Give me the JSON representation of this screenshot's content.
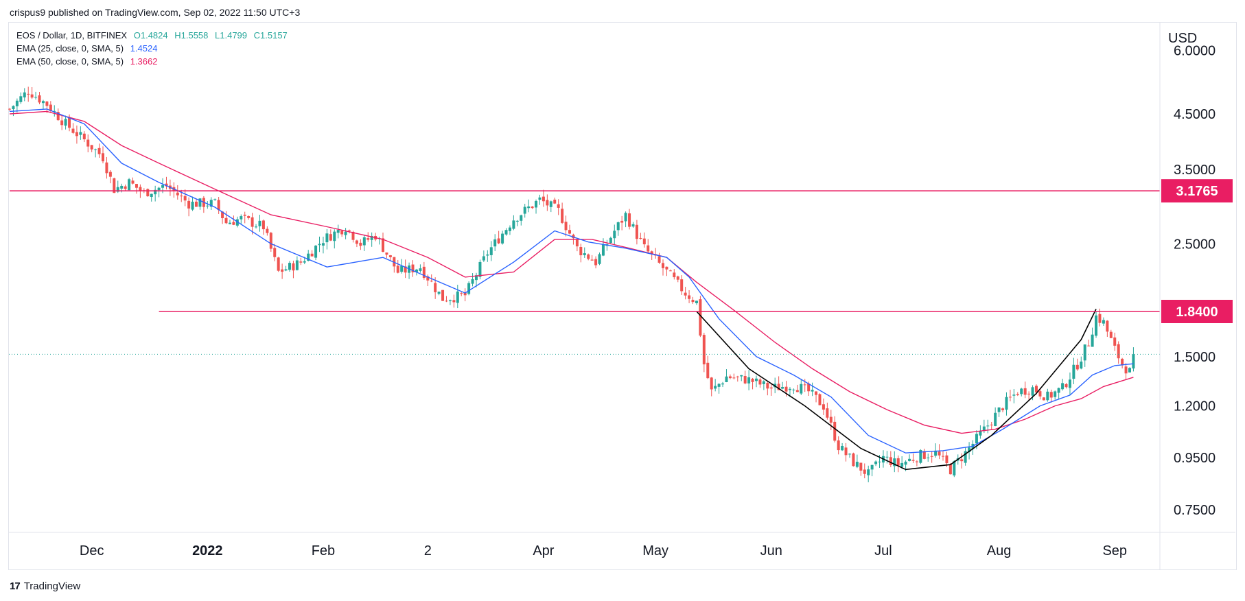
{
  "header": {
    "published": "crispus9 published on TradingView.com, Sep 02, 2022 11:50 UTC+3"
  },
  "legend": {
    "symbol": "EOS / Dollar, 1D, BITFINEX",
    "ohlc": {
      "open": "O1.4824",
      "high": "H1.5558",
      "low": "L1.4799",
      "close": "C1.5157"
    },
    "ema25": {
      "label": "EMA (25, close, 0, SMA, 5)",
      "value": "1.4524",
      "color": "#2962ff"
    },
    "ema50": {
      "label": "EMA (50, close, 0, SMA, 5)",
      "value": "1.3662",
      "color": "#e91e63"
    }
  },
  "footer": {
    "brand": "TradingView",
    "logo": "17"
  },
  "colors": {
    "up": "#26a69a",
    "down": "#ef5350",
    "level": "#e91e63",
    "ema25": "#2962ff",
    "ema50": "#e91e63",
    "pattern": "#000000",
    "lastPrice": "#26a69a"
  },
  "chart_data": {
    "type": "candlestick",
    "title": "EOS / Dollar, 1D, BITFINEX",
    "currency": "USD",
    "scale": "log",
    "ylim": [
      0.6,
      6.0
    ],
    "y_ticks": [
      "6.0000",
      "4.5000",
      "3.5000",
      "2.5000",
      "1.5000",
      "1.2000",
      "0.9500",
      "0.7500"
    ],
    "x_ticks": [
      "Dec",
      "2022",
      "Feb",
      "2",
      "Apr",
      "May",
      "Jun",
      "Jul",
      "Aug",
      "Sep"
    ],
    "x_tick_days": [
      22,
      53,
      84,
      112,
      143,
      173,
      204,
      234,
      265,
      296
    ],
    "date_start": "2021-11-10",
    "horizontal_levels": [
      {
        "value": 3.1765,
        "label": "3.1765",
        "start_day": 0
      },
      {
        "value": 1.84,
        "label": "1.8400",
        "start_day": 40
      }
    ],
    "last_price": 1.5157,
    "cup_pattern": [
      [
        184,
        1.84
      ],
      [
        198,
        1.42
      ],
      [
        213,
        1.2
      ],
      [
        228,
        0.99
      ],
      [
        240,
        0.9
      ],
      [
        252,
        0.92
      ],
      [
        263,
        1.05
      ],
      [
        275,
        1.27
      ],
      [
        287,
        1.62
      ],
      [
        291,
        1.86
      ]
    ],
    "ohlc_anchors": [
      [
        0,
        4.6
      ],
      [
        5,
        5.0
      ],
      [
        10,
        4.7
      ],
      [
        15,
        4.3
      ],
      [
        20,
        4.0
      ],
      [
        25,
        3.7
      ],
      [
        28,
        3.2
      ],
      [
        32,
        3.3
      ],
      [
        36,
        3.15
      ],
      [
        42,
        3.25
      ],
      [
        48,
        3.0
      ],
      [
        55,
        3.0
      ],
      [
        58,
        2.75
      ],
      [
        62,
        2.8
      ],
      [
        68,
        2.7
      ],
      [
        72,
        2.2
      ],
      [
        78,
        2.3
      ],
      [
        84,
        2.55
      ],
      [
        90,
        2.7
      ],
      [
        94,
        2.5
      ],
      [
        98,
        2.6
      ],
      [
        104,
        2.2
      ],
      [
        110,
        2.25
      ],
      [
        116,
        1.95
      ],
      [
        122,
        1.98
      ],
      [
        128,
        2.4
      ],
      [
        135,
        2.8
      ],
      [
        142,
        3.05
      ],
      [
        147,
        2.9
      ],
      [
        152,
        2.45
      ],
      [
        157,
        2.3
      ],
      [
        162,
        2.65
      ],
      [
        165,
        2.85
      ],
      [
        170,
        2.45
      ],
      [
        176,
        2.2
      ],
      [
        181,
        2.0
      ],
      [
        184,
        1.92
      ],
      [
        186,
        1.45
      ],
      [
        188,
        1.28
      ],
      [
        192,
        1.37
      ],
      [
        198,
        1.35
      ],
      [
        204,
        1.3
      ],
      [
        210,
        1.32
      ],
      [
        214,
        1.28
      ],
      [
        218,
        1.2
      ],
      [
        222,
        1.0
      ],
      [
        226,
        0.93
      ],
      [
        230,
        0.88
      ],
      [
        234,
        0.95
      ],
      [
        238,
        0.92
      ],
      [
        244,
        0.96
      ],
      [
        248,
        0.97
      ],
      [
        252,
        0.9
      ],
      [
        256,
        0.97
      ],
      [
        262,
        1.1
      ],
      [
        266,
        1.2
      ],
      [
        270,
        1.28
      ],
      [
        274,
        1.3
      ],
      [
        278,
        1.25
      ],
      [
        282,
        1.3
      ],
      [
        286,
        1.45
      ],
      [
        289,
        1.6
      ],
      [
        291,
        1.8
      ],
      [
        293,
        1.75
      ],
      [
        296,
        1.55
      ],
      [
        298,
        1.45
      ],
      [
        300,
        1.4
      ],
      [
        301,
        1.5157
      ]
    ],
    "ema25_points": [
      [
        0,
        4.55
      ],
      [
        10,
        4.6
      ],
      [
        20,
        4.3
      ],
      [
        30,
        3.6
      ],
      [
        40,
        3.3
      ],
      [
        55,
        2.95
      ],
      [
        70,
        2.5
      ],
      [
        85,
        2.25
      ],
      [
        100,
        2.35
      ],
      [
        112,
        2.15
      ],
      [
        122,
        2.0
      ],
      [
        135,
        2.3
      ],
      [
        146,
        2.65
      ],
      [
        155,
        2.52
      ],
      [
        165,
        2.45
      ],
      [
        176,
        2.35
      ],
      [
        182,
        2.15
      ],
      [
        190,
        1.78
      ],
      [
        200,
        1.5
      ],
      [
        210,
        1.38
      ],
      [
        220,
        1.25
      ],
      [
        230,
        1.05
      ],
      [
        240,
        0.97
      ],
      [
        250,
        0.98
      ],
      [
        258,
        1.0
      ],
      [
        266,
        1.08
      ],
      [
        276,
        1.2
      ],
      [
        284,
        1.26
      ],
      [
        290,
        1.38
      ],
      [
        296,
        1.44
      ],
      [
        301,
        1.4524
      ]
    ],
    "ema50_points": [
      [
        0,
        4.5
      ],
      [
        10,
        4.55
      ],
      [
        20,
        4.35
      ],
      [
        30,
        3.9
      ],
      [
        40,
        3.6
      ],
      [
        55,
        3.2
      ],
      [
        70,
        2.85
      ],
      [
        85,
        2.7
      ],
      [
        100,
        2.55
      ],
      [
        112,
        2.35
      ],
      [
        122,
        2.15
      ],
      [
        135,
        2.2
      ],
      [
        146,
        2.55
      ],
      [
        156,
        2.55
      ],
      [
        166,
        2.45
      ],
      [
        176,
        2.35
      ],
      [
        184,
        2.1
      ],
      [
        194,
        1.85
      ],
      [
        205,
        1.6
      ],
      [
        215,
        1.42
      ],
      [
        225,
        1.28
      ],
      [
        235,
        1.18
      ],
      [
        245,
        1.1
      ],
      [
        255,
        1.06
      ],
      [
        264,
        1.08
      ],
      [
        272,
        1.13
      ],
      [
        280,
        1.2
      ],
      [
        287,
        1.24
      ],
      [
        293,
        1.31
      ],
      [
        301,
        1.3662
      ]
    ]
  }
}
